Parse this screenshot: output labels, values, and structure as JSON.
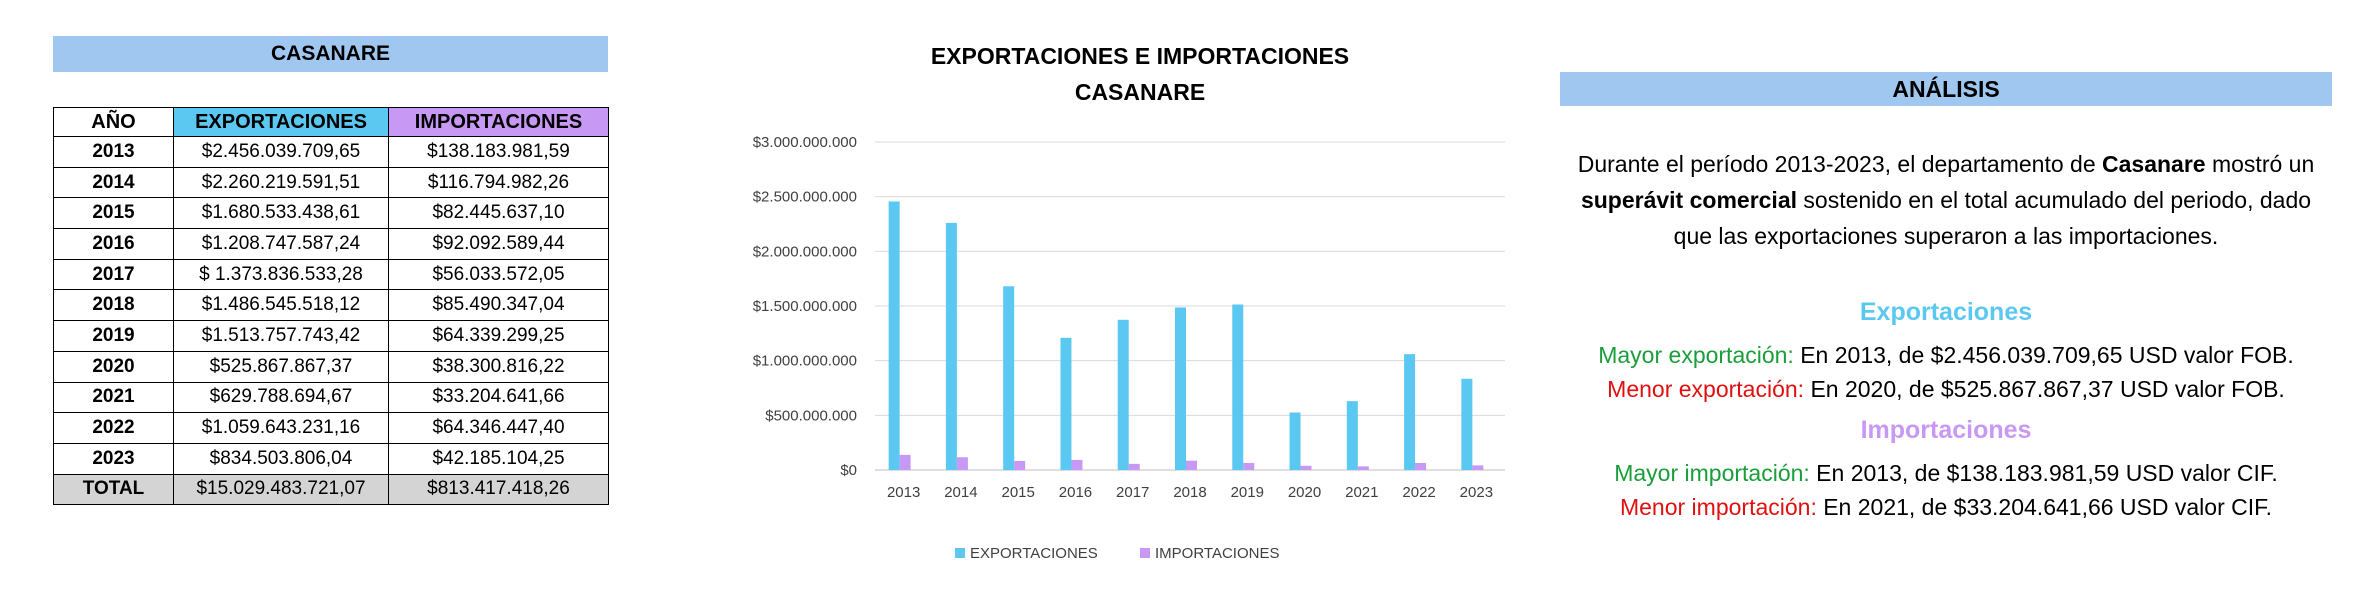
{
  "table": {
    "title": "CASANARE",
    "headers": {
      "year": "AÑO",
      "exp": "EXPORTACIONES",
      "imp": "IMPORTACIONES"
    },
    "rows": [
      {
        "year": "2013",
        "exp": "$2.456.039.709,65",
        "imp": "$138.183.981,59"
      },
      {
        "year": "2014",
        "exp": "$2.260.219.591,51",
        "imp": "$116.794.982,26"
      },
      {
        "year": "2015",
        "exp": "$1.680.533.438,61",
        "imp": "$82.445.637,10"
      },
      {
        "year": "2016",
        "exp": "$1.208.747.587,24",
        "imp": "$92.092.589,44"
      },
      {
        "year": "2017",
        "exp": "$ 1.373.836.533,28",
        "imp": "$56.033.572,05"
      },
      {
        "year": "2018",
        "exp": "$1.486.545.518,12",
        "imp": "$85.490.347,04"
      },
      {
        "year": "2019",
        "exp": "$1.513.757.743,42",
        "imp": "$64.339.299,25"
      },
      {
        "year": "2020",
        "exp": "$525.867.867,37",
        "imp": "$38.300.816,22"
      },
      {
        "year": "2021",
        "exp": "$629.788.694,67",
        "imp": "$33.204.641,66"
      },
      {
        "year": "2022",
        "exp": "$1.059.643.231,16",
        "imp": "$64.346.447,40"
      },
      {
        "year": "2023",
        "exp": "$834.503.806,04",
        "imp": "$42.185.104,25"
      }
    ],
    "total": {
      "year": "TOTAL",
      "exp": "$15.029.483.721,07",
      "imp": "$813.417.418,26"
    }
  },
  "chart_data": {
    "type": "bar",
    "title": "EXPORTACIONES E IMPORTACIONES",
    "subtitle": "CASANARE",
    "categories": [
      "2013",
      "2014",
      "2015",
      "2016",
      "2017",
      "2018",
      "2019",
      "2020",
      "2021",
      "2022",
      "2023"
    ],
    "series": [
      {
        "name": "EXPORTACIONES",
        "color": "#5bc8f2",
        "values": [
          2456039709.65,
          2260219591.51,
          1680533438.61,
          1208747587.24,
          1373836533.28,
          1486545518.12,
          1513757743.42,
          525867867.37,
          629788694.67,
          1059643231.16,
          834503806.04
        ]
      },
      {
        "name": "IMPORTACIONES",
        "color": "#c898f5",
        "values": [
          138183981.59,
          116794982.26,
          82445637.1,
          92092589.44,
          56033572.05,
          85490347.04,
          64339299.25,
          38300816.22,
          33204641.66,
          64346447.4,
          42185104.25
        ]
      }
    ],
    "ylim": [
      0,
      3000000000
    ],
    "yticks": [
      {
        "value": 0,
        "label": "$0"
      },
      {
        "value": 500000000,
        "label": "$500.000.000"
      },
      {
        "value": 1000000000,
        "label": "$1.000.000.000"
      },
      {
        "value": 1500000000,
        "label": "$1.500.000.000"
      },
      {
        "value": 2000000000,
        "label": "$2.000.000.000"
      },
      {
        "value": 2500000000,
        "label": "$2.500.000.000"
      },
      {
        "value": 3000000000,
        "label": "$3.000.000.000"
      }
    ],
    "grid": true,
    "legend": "bottom"
  },
  "analysis": {
    "title": "ANÁLISIS",
    "para": {
      "p1": "Durante el período 2013-2023, el departamento de ",
      "bold1": "Casanare",
      "p2": " mostró un ",
      "bold2": "superávit comercial",
      "p3": " sostenido en el total acumulado del periodo, dado que las exportaciones superaron a las importaciones."
    },
    "exp_title": "Exportaciones",
    "max_exp_label": "Mayor exportación:",
    "max_exp_text": " En 2013, de $2.456.039.709,65 USD valor FOB.",
    "min_exp_label": "Menor exportación:",
    "min_exp_text": " En 2020, de $525.867.867,37 USD valor FOB.",
    "imp_title": "Importaciones",
    "max_imp_label": "Mayor importación:",
    "max_imp_text": " En 2013, de $138.183.981,59 USD valor CIF.",
    "min_imp_label": "Menor importación:",
    "min_imp_text": " En 2021, de $33.204.641,66 USD valor CIF."
  }
}
